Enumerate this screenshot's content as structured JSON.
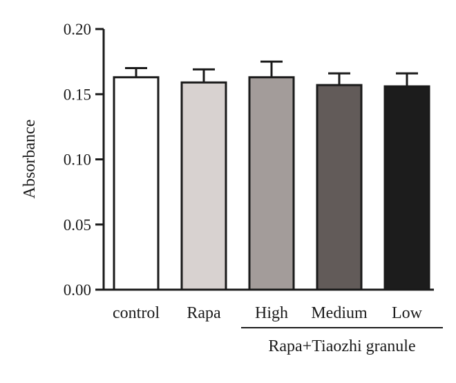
{
  "chart_data": {
    "type": "bar",
    "title": "",
    "xlabel": "",
    "ylabel": "Absorbance",
    "ylim": [
      0,
      0.2
    ],
    "yticks": [
      "0.00",
      "0.05",
      "0.10",
      "0.15",
      "0.20"
    ],
    "categories": [
      "control",
      "Rapa",
      "High",
      "Medium",
      "Low"
    ],
    "values": [
      0.163,
      0.159,
      0.163,
      0.157,
      0.156
    ],
    "errors": [
      0.007,
      0.01,
      0.012,
      0.009,
      0.01
    ],
    "colors": [
      "#ffffff",
      "#d8d2d0",
      "#a39c9a",
      "#625b59",
      "#1c1c1c"
    ],
    "edge_color": "#1a1a1a",
    "group": {
      "label": "Rapa+Tiaozhi granule",
      "spans": [
        "High",
        "Medium",
        "Low"
      ]
    },
    "grid": false,
    "legend": "none"
  }
}
